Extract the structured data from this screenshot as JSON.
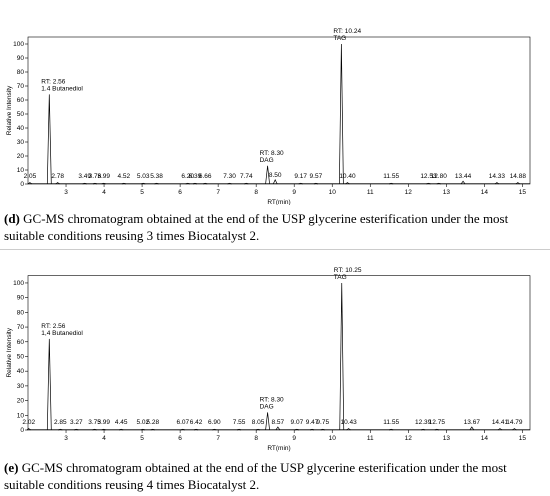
{
  "chart_data": [
    {
      "type": "chromatogram",
      "x_label": "RT(min)",
      "y_label": "Relative Intensity",
      "xlim": [
        2.0,
        15.2
      ],
      "ylim": [
        0,
        105
      ],
      "xticks": [
        3,
        4,
        5,
        6,
        7,
        8,
        9,
        10,
        11,
        12,
        13,
        14,
        15
      ],
      "yticks": [
        0,
        10,
        20,
        30,
        40,
        50,
        60,
        70,
        80,
        90,
        100
      ],
      "color": "#000000",
      "x": [
        2.05,
        2.56,
        2.78,
        3.49,
        3.76,
        3.99,
        4.52,
        5.03,
        5.38,
        6.2,
        6.39,
        6.66,
        7.3,
        7.74,
        8.3,
        8.5,
        9.17,
        9.57,
        10.24,
        10.4,
        11.55,
        12.53,
        12.8,
        13.44,
        14.33,
        14.88
      ],
      "values": [
        1,
        64,
        1,
        0.5,
        0.5,
        0.5,
        0.5,
        0.5,
        0.5,
        0.5,
        0.5,
        0.5,
        0.5,
        0.5,
        13,
        3,
        0.5,
        0.5,
        100,
        1,
        0.5,
        0.5,
        0.5,
        2,
        1,
        1
      ],
      "peak_labels": [
        "2.05",
        "RT: 2.56",
        "2.78",
        "3.49",
        "3.76",
        "3.99",
        "4.52",
        "5.03",
        "5.38",
        "6.20",
        "6.39",
        "6.66",
        "7.30",
        "7.74",
        "RT: 8.30",
        "8.50",
        "9.17",
        "9.57",
        "RT: 10.24",
        "10.40",
        "11.55",
        "12.53",
        "12.80",
        "13.44",
        "14.33",
        "14.88"
      ],
      "peak_names": [
        null,
        "1.4 Butanediol",
        null,
        null,
        null,
        null,
        null,
        null,
        null,
        null,
        null,
        null,
        null,
        null,
        "DAG",
        null,
        null,
        null,
        "TAG",
        null,
        null,
        null,
        null,
        null,
        null,
        null
      ],
      "caption_label": "(d)",
      "caption": " GC-MS chromatogram obtained at the end of the USP glycerine esterification under the most suitable conditions reusing 3 times Biocatalyst 2."
    },
    {
      "type": "chromatogram",
      "x_label": "RT(min)",
      "y_label": "Relative Intensity",
      "xlim": [
        2.0,
        15.2
      ],
      "ylim": [
        0,
        105
      ],
      "xticks": [
        3,
        4,
        5,
        6,
        7,
        8,
        9,
        10,
        11,
        12,
        13,
        14,
        15
      ],
      "yticks": [
        0,
        10,
        20,
        30,
        40,
        50,
        60,
        70,
        80,
        90,
        100
      ],
      "color": "#000000",
      "x": [
        2.02,
        2.56,
        2.85,
        3.27,
        3.75,
        3.99,
        4.45,
        5.02,
        5.28,
        6.07,
        6.42,
        6.9,
        7.55,
        8.05,
        8.3,
        8.57,
        9.07,
        9.47,
        9.75,
        10.25,
        10.43,
        11.55,
        12.39,
        12.75,
        13.67,
        14.41,
        14.79
      ],
      "values": [
        1,
        62,
        0.5,
        0.5,
        0.5,
        0.5,
        0.5,
        0.5,
        0.5,
        0.5,
        0.5,
        0.5,
        0.5,
        0.5,
        12,
        2,
        0.5,
        0.5,
        0.5,
        100,
        1,
        0.5,
        0.5,
        0.5,
        2,
        1,
        1
      ],
      "peak_labels": [
        "2.02",
        "RT: 2.56",
        "2.85",
        "3.27",
        "3.75",
        "3.99",
        "4.45",
        "5.02",
        "5.28",
        "6.07",
        "6.42",
        "6.90",
        "7.55",
        "8.05",
        "RT: 8.30",
        "8.57",
        "9.07",
        "9.47",
        "9.75",
        "RT: 10.25",
        "10.43",
        "11.55",
        "12.39",
        "12.75",
        "13.67",
        "14.41",
        "14.79"
      ],
      "peak_names": [
        null,
        "1,4 Butanediol",
        null,
        null,
        null,
        null,
        null,
        null,
        null,
        null,
        null,
        null,
        null,
        null,
        "DAG",
        null,
        null,
        null,
        null,
        "TAG",
        null,
        null,
        null,
        null,
        null,
        null,
        null
      ],
      "caption_label": "(e)",
      "caption": " GC-MS chromatogram obtained at the end of the USP glycerine esterification under the most suitable conditions reusing 4 times Biocatalyst 2."
    }
  ]
}
